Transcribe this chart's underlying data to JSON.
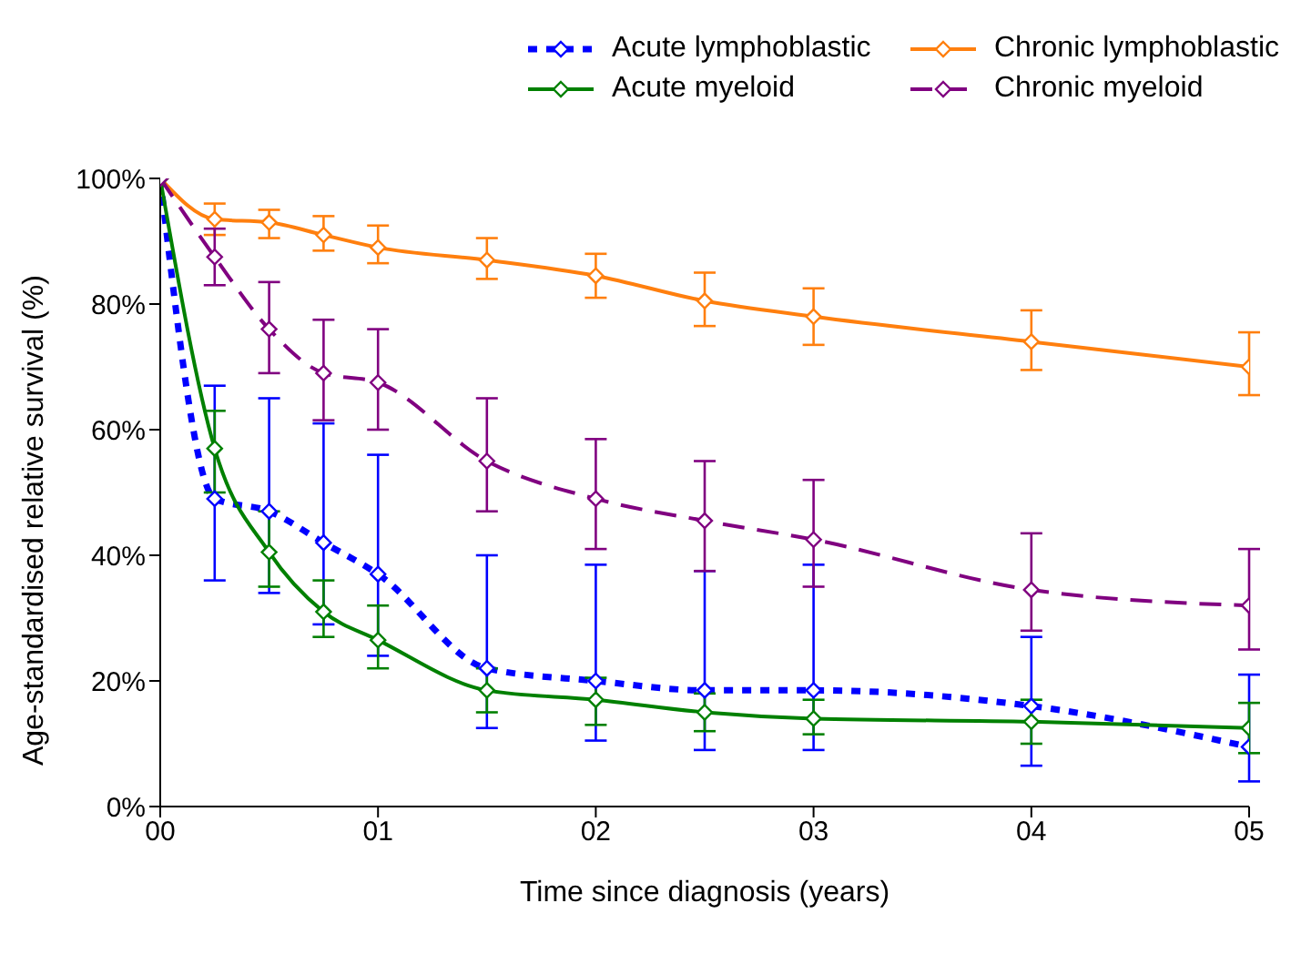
{
  "chart_data": {
    "type": "line",
    "xlabel": "Time since diagnosis (years)",
    "ylabel": "Age-standardised relative survival (%)",
    "x": [
      0,
      0.25,
      0.5,
      0.75,
      1,
      1.5,
      2,
      2.5,
      3,
      4,
      5
    ],
    "xlim": [
      0,
      5
    ],
    "xticks": [
      {
        "value": 0,
        "label": "00"
      },
      {
        "value": 1,
        "label": "01"
      },
      {
        "value": 2,
        "label": "02"
      },
      {
        "value": 3,
        "label": "03"
      },
      {
        "value": 4,
        "label": "04"
      },
      {
        "value": 5,
        "label": "05"
      }
    ],
    "ylim": [
      0,
      100
    ],
    "yticks": [
      {
        "value": 0,
        "label": "0%"
      },
      {
        "value": 20,
        "label": "20%"
      },
      {
        "value": 40,
        "label": "40%"
      },
      {
        "value": 60,
        "label": "60%"
      },
      {
        "value": 80,
        "label": "80%"
      },
      {
        "value": 100,
        "label": "100%"
      }
    ],
    "grid": false,
    "legend": "top",
    "marker": "diamond",
    "series": [
      {
        "name": "Acute lymphoblastic",
        "color": "#0000ff",
        "line_style": "dotted",
        "values": [
          100,
          49,
          47,
          42,
          37,
          22,
          20,
          18.5,
          18.5,
          16,
          9.5
        ],
        "errors": [
          null,
          [
            36,
            67
          ],
          [
            34,
            65
          ],
          [
            29,
            61
          ],
          [
            24,
            56
          ],
          [
            12.5,
            40
          ],
          [
            10.5,
            38.5
          ],
          [
            9,
            37.5
          ],
          [
            9,
            38.5
          ],
          [
            6.5,
            27
          ],
          [
            4,
            21
          ]
        ]
      },
      {
        "name": "Chronic lymphoblastic",
        "color": "#ff7f0e",
        "line_style": "solid",
        "values": [
          100,
          93.5,
          93,
          91,
          89,
          87,
          84.5,
          80.5,
          78,
          74,
          70
        ],
        "errors": [
          null,
          [
            91,
            96
          ],
          [
            90.5,
            95
          ],
          [
            88.5,
            94
          ],
          [
            86.5,
            92.5
          ],
          [
            84,
            90.5
          ],
          [
            81,
            88
          ],
          [
            76.5,
            85
          ],
          [
            73.5,
            82.5
          ],
          [
            69.5,
            79
          ],
          [
            65.5,
            75.5
          ]
        ]
      },
      {
        "name": "Acute myeloid",
        "color": "#008000",
        "line_style": "solid",
        "values": [
          100,
          57,
          40.5,
          31,
          26.5,
          18.5,
          17,
          15,
          14,
          13.5,
          12.5
        ],
        "errors": [
          null,
          [
            50,
            63
          ],
          [
            35,
            47
          ],
          [
            27,
            36
          ],
          [
            22,
            32
          ],
          [
            15,
            22
          ],
          [
            13,
            20.5
          ],
          [
            12,
            18
          ],
          [
            11.5,
            17
          ],
          [
            10,
            17
          ],
          [
            8.5,
            16.5
          ]
        ]
      },
      {
        "name": "Chronic myeloid",
        "color": "#800080",
        "line_style": "dashed",
        "values": [
          100,
          87.5,
          76,
          69,
          67.5,
          55,
          49,
          45.5,
          42.5,
          34.5,
          32
        ],
        "errors": [
          null,
          [
            83,
            92
          ],
          [
            69,
            83.5
          ],
          [
            61.5,
            77.5
          ],
          [
            60,
            76
          ],
          [
            47,
            65
          ],
          [
            41,
            58.5
          ],
          [
            37.5,
            55
          ],
          [
            35,
            52
          ],
          [
            28,
            43.5
          ],
          [
            25,
            41
          ]
        ]
      }
    ]
  }
}
